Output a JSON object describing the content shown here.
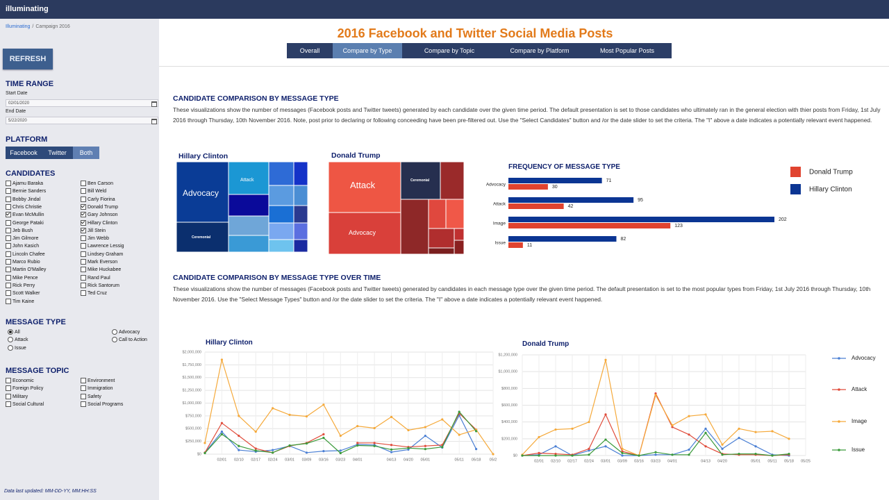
{
  "nav": {
    "logo": "illuminating"
  },
  "sidebar": {
    "breadcrumb": [
      "Illuminating",
      "/",
      "Campaign 2016"
    ],
    "refresh": "REFRESH",
    "time_range": {
      "title": "TIME RANGE",
      "start_label": "Start Date",
      "start_value": "02/01/2020",
      "end_label": "End Date",
      "end_value": "5/22/2020"
    },
    "platform": {
      "title": "PLATFORM",
      "options": [
        "Facebook",
        "Twitter",
        "Both"
      ],
      "selected": 2
    },
    "candidates": {
      "title": "CANDIDATES",
      "columns": [
        [
          {
            "name": "Ajamu Baraka",
            "checked": false
          },
          {
            "name": "Bernie Sanders",
            "checked": false
          },
          {
            "name": "Bobby Jindal",
            "checked": false
          },
          {
            "name": "Chris Christie",
            "checked": false
          },
          {
            "name": "Evan McMullin",
            "checked": true
          },
          {
            "name": "George Pataki",
            "checked": false
          },
          {
            "name": "Jeb Bush",
            "checked": false
          },
          {
            "name": "Jim Gilmore",
            "checked": false
          },
          {
            "name": "John Kasich",
            "checked": false
          },
          {
            "name": "Lincoln Chafee",
            "checked": false
          },
          {
            "name": "Marco Rubio",
            "checked": false
          },
          {
            "name": "Martin O'Malley",
            "checked": false
          },
          {
            "name": "Mike Pence",
            "checked": false
          },
          {
            "name": "Rick Perry",
            "checked": false
          },
          {
            "name": "Scott Walker",
            "checked": false
          },
          {
            "name": "Tim Kaine",
            "checked": false
          }
        ],
        [
          {
            "name": "Ben Carson",
            "checked": false
          },
          {
            "name": "Bill Weld",
            "checked": false
          },
          {
            "name": "Carly Fiorina",
            "checked": false
          },
          {
            "name": "Donald Trump",
            "checked": true
          },
          {
            "name": "Gary Johnson",
            "checked": true
          },
          {
            "name": "Hillary Clinton",
            "checked": true
          },
          {
            "name": "Jill Stein",
            "checked": true
          },
          {
            "name": "Jim Webb",
            "checked": false
          },
          {
            "name": "Lawrence Lessig",
            "checked": false
          },
          {
            "name": "Lindsey Graham",
            "checked": false
          },
          {
            "name": "Mark Everson",
            "checked": false
          },
          {
            "name": "Mike Huckabee",
            "checked": false
          },
          {
            "name": "Rand Paul",
            "checked": false
          },
          {
            "name": "Rick Santorum",
            "checked": false
          },
          {
            "name": "Ted Cruz",
            "checked": false
          }
        ]
      ]
    },
    "message_type": {
      "title": "MESSAGE TYPE",
      "columns": [
        [
          {
            "name": "All",
            "checked": true
          },
          {
            "name": "Attack",
            "checked": false
          },
          {
            "name": "Issue",
            "checked": false
          }
        ],
        [
          {
            "name": "Advocacy",
            "checked": false
          },
          {
            "name": "Call to Action",
            "checked": false
          }
        ]
      ]
    },
    "message_topic": {
      "title": "MESSAGE TOPIC",
      "columns": [
        [
          {
            "name": "Economic",
            "checked": false
          },
          {
            "name": "Foreign Policy",
            "checked": false
          },
          {
            "name": "Military",
            "checked": false
          },
          {
            "name": "Social Cultural",
            "checked": false
          }
        ],
        [
          {
            "name": "Environment",
            "checked": false
          },
          {
            "name": "Immigration",
            "checked": false
          },
          {
            "name": "Safety",
            "checked": false
          },
          {
            "name": "Social Programs",
            "checked": false
          }
        ]
      ]
    },
    "footer": "Data last updated: MM-DD-YY, MM:HH:SS"
  },
  "header": {
    "title": "2016 Facebook and Twitter Social Media Posts",
    "tabs": [
      "Overall",
      "Compare by Type",
      "Compare by Topic",
      "Compare by Platform",
      "Most Popular Posts"
    ],
    "active_tab": 1
  },
  "section1": {
    "heading": "CANDIDATE COMPARISON BY MESSAGE TYPE",
    "description": "These visualizations show the number of messages (Facebook posts and Twitter tweets) generated by each candidate over the given time period. The default presentation is set to those candidates who ultimately ran in the general election with thier posts from Friday, 1st July 2016 through Thursday, 10th November 2016. Note, post prior to declaring or following conceeding have been pre-filtered out. Use the \"Select Candidates\" button and /or the date slider to set the criteria. The \"I\" above a date indicates a potentially relevant event happened.",
    "treemaps": [
      {
        "title": "Hillary Clinton",
        "labels": [
          "Advocacy",
          "Attack",
          "Ceremonial"
        ]
      },
      {
        "title": "Donald Trump",
        "labels": [
          "Attack",
          "Ceremonial",
          "Advocacy"
        ]
      }
    ]
  },
  "section2": {
    "heading": "CANDIDATE COMPARISON BY MESSAGE TYPE OVER TIME",
    "description": "These visualizations show the number of messages (Facebook posts and Twitter tweets) generated by candidates in each message type over the given time period. The default presentation is set to the most popular types from Friday, 1st July 2016 through Thursday, 10th November 2016. Use the \"Select Message Types\" button and /or the date slider to set the criteria. The \"I\" above a date indicates a potentially relevant event happened."
  },
  "chart_data": [
    {
      "type": "bar",
      "title": "FREQUENCY OF MESSAGE TYPE",
      "categories": [
        "Advocacy",
        "Attack",
        "Image",
        "Issue"
      ],
      "series": [
        {
          "name": "Hillary Clinton",
          "color": "#0b3593",
          "values": [
            71,
            95,
            202,
            82
          ]
        },
        {
          "name": "Donald Trump",
          "color": "#e0432f",
          "values": [
            30,
            42,
            123,
            11
          ]
        }
      ]
    },
    {
      "type": "line",
      "title": "Hillary Clinton",
      "categories": [
        null,
        "02/01",
        "02/10",
        "02/17",
        "02/24",
        "03/01",
        "03/09",
        "03/16",
        "03/23",
        "04/01",
        null,
        "04/13",
        "04/20",
        "05/01",
        null,
        "05/11",
        "05/18",
        "05/2"
      ],
      "ylim": [
        0,
        2000000
      ],
      "yticks": [
        {
          "value": 0,
          "label": "$0"
        },
        {
          "value": 250000,
          "label": "$250,000"
        },
        {
          "value": 500000,
          "label": "$500,000"
        },
        {
          "value": 750000,
          "label": "$750,000"
        },
        {
          "value": 1000000,
          "label": "$1,000,000"
        },
        {
          "value": 1250000,
          "label": "$1,250,000"
        },
        {
          "value": 1500000,
          "label": "$1,500,000"
        },
        {
          "value": 1750000,
          "label": "$1,750,000"
        },
        {
          "value": 2000000,
          "label": "$2,000,000"
        }
      ],
      "grid": true,
      "series": [
        {
          "name": "Advocacy",
          "color": "#4a7fd4",
          "values": [
            30000,
            440000,
            80000,
            50000,
            80000,
            160000,
            30000,
            60000,
            70000,
            190000,
            180000,
            40000,
            90000,
            360000,
            130000,
            760000,
            100000,
            null
          ]
        },
        {
          "name": "Attack",
          "color": "#e04b3a",
          "values": [
            30000,
            610000,
            360000,
            110000,
            30000,
            160000,
            220000,
            390000,
            null,
            220000,
            220000,
            180000,
            140000,
            160000,
            180000,
            800000,
            480000,
            null
          ]
        },
        {
          "name": "Image",
          "color": "#f5a93a",
          "values": [
            220000,
            1850000,
            750000,
            440000,
            900000,
            770000,
            740000,
            970000,
            360000,
            550000,
            510000,
            730000,
            470000,
            530000,
            680000,
            380000,
            480000,
            0
          ]
        },
        {
          "name": "Issue",
          "color": "#3a9a3a",
          "values": [
            20000,
            390000,
            160000,
            70000,
            30000,
            170000,
            210000,
            320000,
            20000,
            170000,
            160000,
            90000,
            120000,
            100000,
            140000,
            830000,
            450000,
            null
          ]
        }
      ]
    },
    {
      "type": "line",
      "title": "Donald Trump",
      "categories": [
        null,
        "02/01",
        "02/10",
        "02/17",
        "02/24",
        "03/01",
        "03/09",
        "03/16",
        "03/23",
        "04/01",
        null,
        "04/13",
        "04/20",
        null,
        "05/01",
        "05/11",
        "05/18",
        "05/25"
      ],
      "ylim": [
        0,
        1200000
      ],
      "yticks": [
        {
          "value": 0,
          "label": "$0"
        },
        {
          "value": 200000,
          "label": "$200,000"
        },
        {
          "value": 400000,
          "label": "$400,000"
        },
        {
          "value": 600000,
          "label": "$600,000"
        },
        {
          "value": 800000,
          "label": "$800,000"
        },
        {
          "value": 1000000,
          "label": "$1,000,000"
        },
        {
          "value": 1200000,
          "label": "$1,200,000"
        }
      ],
      "grid": true,
      "series": [
        {
          "name": "Advocacy",
          "color": "#4a7fd4",
          "values": [
            0,
            10000,
            110000,
            0,
            60000,
            110000,
            0,
            0,
            10000,
            10000,
            70000,
            320000,
            80000,
            210000,
            110000,
            10000,
            0,
            null
          ]
        },
        {
          "name": "Attack",
          "color": "#e04b3a",
          "values": [
            0,
            30000,
            20000,
            10000,
            80000,
            490000,
            50000,
            0,
            740000,
            340000,
            250000,
            110000,
            20000,
            10000,
            10000,
            0,
            10000,
            null
          ]
        },
        {
          "name": "Image",
          "color": "#f5a93a",
          "values": [
            10000,
            220000,
            310000,
            320000,
            400000,
            1140000,
            80000,
            0,
            720000,
            360000,
            470000,
            490000,
            130000,
            320000,
            280000,
            290000,
            200000,
            null
          ]
        },
        {
          "name": "Issue",
          "color": "#3a9a3a",
          "values": [
            0,
            0,
            0,
            0,
            10000,
            190000,
            30000,
            0,
            40000,
            10000,
            10000,
            270000,
            10000,
            20000,
            20000,
            0,
            20000,
            null
          ]
        }
      ]
    }
  ]
}
